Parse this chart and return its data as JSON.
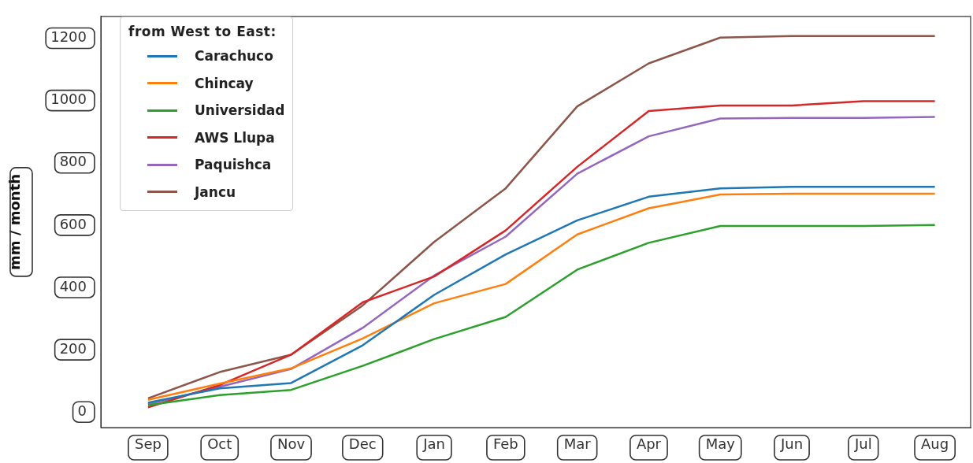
{
  "chart_data": {
    "type": "line",
    "ylabel": "mm / month",
    "legend_title": "from West to East:",
    "legend": "top left",
    "grid": false,
    "marker": "none",
    "line_style": "solid",
    "categories": [
      "Sep",
      "Oct",
      "Nov",
      "Dec",
      "Jan",
      "Feb",
      "Mar",
      "Apr",
      "May",
      "Jun",
      "Jul",
      "Aug"
    ],
    "ylim": [
      -50,
      1270
    ],
    "yticks": [
      0,
      200,
      400,
      600,
      800,
      1000,
      1200
    ],
    "series": [
      {
        "name": "Carachuco",
        "color": "#1f77b4",
        "values": [
          30,
          76,
          93,
          214,
          376,
          506,
          615,
          691,
          718,
          723,
          723,
          723
        ]
      },
      {
        "name": "Chincay",
        "color": "#ff7f0e",
        "values": [
          39,
          91,
          140,
          236,
          349,
          411,
          570,
          654,
          698,
          701,
          701,
          701
        ]
      },
      {
        "name": "Universidad",
        "color": "#2ca02c",
        "values": [
          22,
          54,
          71,
          148,
          234,
          305,
          457,
          543,
          597,
          597,
          597,
          600
        ]
      },
      {
        "name": "AWS Llupa",
        "color": "#d62728",
        "values": [
          15,
          86,
          184,
          352,
          435,
          583,
          787,
          966,
          984,
          984,
          998,
          998
        ]
      },
      {
        "name": "Paquishca",
        "color": "#9467bd",
        "values": [
          25,
          81,
          138,
          270,
          438,
          563,
          765,
          885,
          942,
          944,
          944,
          947
        ]
      },
      {
        "name": "Jancu",
        "color": "#8c564b",
        "values": [
          44,
          128,
          184,
          342,
          546,
          718,
          981,
          1119,
          1202,
          1207,
          1207,
          1207
        ]
      }
    ]
  }
}
